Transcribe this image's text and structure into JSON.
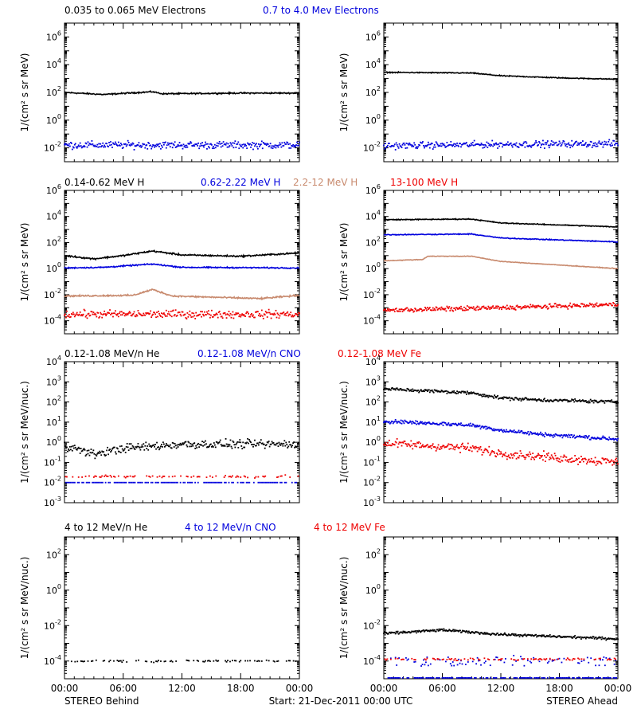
{
  "colors": {
    "black": "#000000",
    "blue": "#0000dd",
    "tan": "#c88a6e",
    "red": "#ee0000"
  },
  "footer": {
    "left": "STEREO Behind",
    "center": "Start: 21-Dec-2011 00:00 UTC",
    "right": "STEREO Ahead"
  },
  "chart_data": [
    {
      "type": "scatter",
      "row": 0,
      "ylabel": "1/(cm² s sr MeV)",
      "log_y": true,
      "ylim_exp": [
        -3,
        7
      ],
      "yticks_exp": [
        -2,
        0,
        2,
        4,
        6
      ],
      "xticks": [
        "00:00",
        "06:00",
        "12:00",
        "18:00",
        "00:00"
      ],
      "xlim_hours": [
        0,
        24
      ],
      "legend": [
        {
          "text": "0.035 to 0.065 MeV Electrons",
          "color": "black"
        },
        {
          "text": "0.7 to 4.0 Mev Electrons",
          "color": "blue"
        }
      ],
      "panels": [
        {
          "side": "Behind",
          "series": [
            {
              "color": "black",
              "style": "line",
              "trend": [
                [
                  0,
                  2.0
                ],
                [
                  4,
                  1.85
                ],
                [
                  9,
                  2.05
                ],
                [
                  10,
                  1.9
                ],
                [
                  18,
                  1.95
                ],
                [
                  24,
                  1.95
                ]
              ],
              "noise": 0.04
            },
            {
              "color": "blue",
              "style": "dots",
              "trend": [
                [
                  0,
                  -1.8
                ],
                [
                  24,
                  -1.8
                ]
              ],
              "noise": 0.22
            }
          ]
        },
        {
          "side": "Ahead",
          "series": [
            {
              "color": "black",
              "style": "line",
              "trend": [
                [
                  0,
                  3.45
                ],
                [
                  9,
                  3.4
                ],
                [
                  12,
                  3.2
                ],
                [
                  18,
                  3.05
                ],
                [
                  24,
                  2.95
                ]
              ],
              "noise": 0.03
            },
            {
              "color": "blue",
              "style": "dots",
              "trend": [
                [
                  0,
                  -1.85
                ],
                [
                  12,
                  -1.75
                ],
                [
                  24,
                  -1.7
                ]
              ],
              "noise": 0.2
            }
          ]
        }
      ]
    },
    {
      "type": "scatter",
      "row": 1,
      "ylabel": "1/(cm² s sr MeV)",
      "log_y": true,
      "ylim_exp": [
        -5,
        6
      ],
      "yticks_exp": [
        -4,
        -2,
        0,
        2,
        4,
        6
      ],
      "xticks": [
        "00:00",
        "06:00",
        "12:00",
        "18:00",
        "00:00"
      ],
      "xlim_hours": [
        0,
        24
      ],
      "legend": [
        {
          "text": "0.14-0.62 MeV H",
          "color": "black"
        },
        {
          "text": "0.62-2.22 MeV H",
          "color": "blue"
        },
        {
          "text": "2.2-12 MeV H",
          "color": "tan"
        },
        {
          "text": "13-100 MeV H",
          "color": "red"
        }
      ],
      "panels": [
        {
          "side": "Behind",
          "series": [
            {
              "color": "black",
              "style": "line",
              "trend": [
                [
                  0,
                  1.0
                ],
                [
                  3,
                  0.75
                ],
                [
                  6,
                  1.0
                ],
                [
                  9,
                  1.35
                ],
                [
                  12,
                  1.05
                ],
                [
                  18,
                  0.95
                ],
                [
                  24,
                  1.2
                ]
              ],
              "noise": 0.05
            },
            {
              "color": "blue",
              "style": "line",
              "trend": [
                [
                  0,
                  0.05
                ],
                [
                  4,
                  0.1
                ],
                [
                  9,
                  0.35
                ],
                [
                  12,
                  0.1
                ],
                [
                  24,
                  0.05
                ]
              ],
              "noise": 0.04
            },
            {
              "color": "tan",
              "style": "line",
              "trend": [
                [
                  0,
                  -2.1
                ],
                [
                  7,
                  -2.05
                ],
                [
                  9,
                  -1.6
                ],
                [
                  11,
                  -2.1
                ],
                [
                  20,
                  -2.3
                ],
                [
                  24,
                  -2.05
                ]
              ],
              "noise": 0.05
            },
            {
              "color": "red",
              "style": "dots",
              "trend": [
                [
                  0,
                  -3.5
                ],
                [
                  24,
                  -3.5
                ]
              ],
              "noise": 0.25
            }
          ]
        },
        {
          "side": "Ahead",
          "series": [
            {
              "color": "black",
              "style": "line",
              "trend": [
                [
                  0,
                  3.75
                ],
                [
                  9,
                  3.8
                ],
                [
                  12,
                  3.5
                ],
                [
                  24,
                  3.2
                ]
              ],
              "noise": 0.03
            },
            {
              "color": "blue",
              "style": "line",
              "trend": [
                [
                  0,
                  2.6
                ],
                [
                  9,
                  2.65
                ],
                [
                  12,
                  2.35
                ],
                [
                  24,
                  2.05
                ]
              ],
              "noise": 0.03
            },
            {
              "color": "tan",
              "style": "line",
              "trend": [
                [
                  0,
                  0.6
                ],
                [
                  4,
                  0.7
                ],
                [
                  4.5,
                  0.95
                ],
                [
                  9,
                  0.95
                ],
                [
                  12,
                  0.55
                ],
                [
                  24,
                  0.0
                ]
              ],
              "noise": 0.02
            },
            {
              "color": "red",
              "style": "dots",
              "trend": [
                [
                  0,
                  -3.2
                ],
                [
                  12,
                  -3.0
                ],
                [
                  24,
                  -2.75
                ]
              ],
              "noise": 0.15
            }
          ]
        }
      ]
    },
    {
      "type": "scatter",
      "row": 2,
      "ylabel": "1/(cm² s sr MeV/nuc.)",
      "log_y": true,
      "ylim_exp": [
        -3,
        4
      ],
      "yticks_exp": [
        -3,
        -2,
        -1,
        0,
        1,
        2,
        3,
        4
      ],
      "xticks": [
        "00:00",
        "06:00",
        "12:00",
        "18:00",
        "00:00"
      ],
      "xlim_hours": [
        0,
        24
      ],
      "legend": [
        {
          "text": "0.12-1.08 MeV/n He",
          "color": "black"
        },
        {
          "text": "0.12-1.08 MeV/n CNO",
          "color": "blue"
        },
        {
          "text": "0.12-1.08 MeV Fe",
          "color": "red"
        }
      ],
      "panels": [
        {
          "side": "Behind",
          "series": [
            {
              "color": "black",
              "style": "dots",
              "trend": [
                [
                  0,
                  -0.15
                ],
                [
                  3,
                  -0.6
                ],
                [
                  6,
                  -0.3
                ],
                [
                  12,
                  -0.1
                ],
                [
                  24,
                  -0.1
                ]
              ],
              "noise": 0.18
            },
            {
              "color": "blue",
              "style": "floor",
              "trend": [
                [
                  0,
                  -2.0
                ],
                [
                  24,
                  -2.0
                ]
              ],
              "noise": 0.0
            },
            {
              "color": "red",
              "style": "sparse",
              "trend": [
                [
                  0,
                  -1.7
                ],
                [
                  24,
                  -1.7
                ]
              ],
              "noise": 0.05
            }
          ]
        },
        {
          "side": "Ahead",
          "series": [
            {
              "color": "black",
              "style": "dots",
              "trend": [
                [
                  0,
                  2.65
                ],
                [
                  9,
                  2.45
                ],
                [
                  12,
                  2.2
                ],
                [
                  16,
                  2.1
                ],
                [
                  24,
                  2.0
                ]
              ],
              "noise": 0.07
            },
            {
              "color": "blue",
              "style": "dots",
              "trend": [
                [
                  0,
                  1.05
                ],
                [
                  9,
                  0.85
                ],
                [
                  12,
                  0.6
                ],
                [
                  16,
                  0.4
                ],
                [
                  24,
                  0.15
                ]
              ],
              "noise": 0.08
            },
            {
              "color": "red",
              "style": "dots",
              "trend": [
                [
                  0,
                  -0.05
                ],
                [
                  9,
                  -0.3
                ],
                [
                  12,
                  -0.55
                ],
                [
                  24,
                  -1.0
                ]
              ],
              "noise": 0.18
            }
          ]
        }
      ]
    },
    {
      "type": "scatter",
      "row": 3,
      "ylabel": "1/(cm² s sr MeV/nuc.)",
      "log_y": true,
      "ylim_exp": [
        -5,
        3
      ],
      "yticks_exp": [
        -4,
        -2,
        0,
        2
      ],
      "xticks": [
        "00:00",
        "06:00",
        "12:00",
        "18:00",
        "00:00"
      ],
      "xlim_hours": [
        0,
        24
      ],
      "legend": [
        {
          "text": "4 to 12 MeV/n He",
          "color": "black"
        },
        {
          "text": "4 to 12 MeV/n CNO",
          "color": "blue"
        },
        {
          "text": "4 to 12 MeV Fe",
          "color": "red"
        }
      ],
      "panels": [
        {
          "side": "Behind",
          "series": [
            {
              "color": "black",
              "style": "sparse",
              "trend": [
                [
                  0,
                  -4.0
                ],
                [
                  24,
                  -4.0
                ]
              ],
              "noise": 0.05
            }
          ]
        },
        {
          "side": "Ahead",
          "series": [
            {
              "color": "black",
              "style": "dots",
              "trend": [
                [
                  0,
                  -2.45
                ],
                [
                  6,
                  -2.25
                ],
                [
                  12,
                  -2.5
                ],
                [
                  24,
                  -2.75
                ]
              ],
              "noise": 0.06
            },
            {
              "color": "blue",
              "style": "sparse",
              "trend": [
                [
                  0,
                  -4.0
                ],
                [
                  24,
                  -4.0
                ]
              ],
              "noise": 0.25
            },
            {
              "color": "blue",
              "style": "floor",
              "trend": [
                [
                  0,
                  -4.95
                ],
                [
                  24,
                  -4.95
                ]
              ],
              "noise": 0.0
            },
            {
              "color": "red",
              "style": "sparse",
              "trend": [
                [
                  0,
                  -3.9
                ],
                [
                  24,
                  -3.9
                ]
              ],
              "noise": 0.05
            }
          ]
        }
      ]
    }
  ]
}
